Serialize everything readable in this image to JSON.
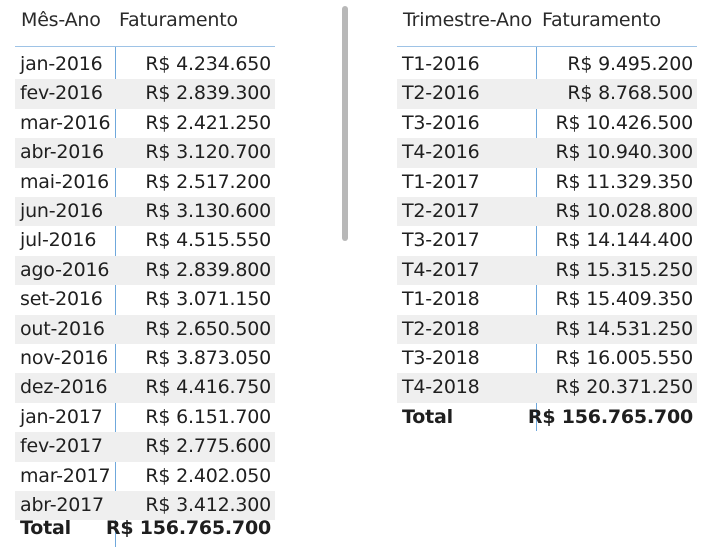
{
  "left_table": {
    "headers": [
      "Mês-Ano",
      "Faturamento"
    ],
    "rows": [
      [
        "jan-2016",
        "R$ 4.234.650"
      ],
      [
        "fev-2016",
        "R$ 2.839.300"
      ],
      [
        "mar-2016",
        "R$ 2.421.250"
      ],
      [
        "abr-2016",
        "R$ 3.120.700"
      ],
      [
        "mai-2016",
        "R$ 2.517.200"
      ],
      [
        "jun-2016",
        "R$ 3.130.600"
      ],
      [
        "jul-2016",
        "R$ 4.515.550"
      ],
      [
        "ago-2016",
        "R$ 2.839.800"
      ],
      [
        "set-2016",
        "R$ 3.071.150"
      ],
      [
        "out-2016",
        "R$ 2.650.500"
      ],
      [
        "nov-2016",
        "R$ 3.873.050"
      ],
      [
        "dez-2016",
        "R$ 4.416.750"
      ],
      [
        "jan-2017",
        "R$ 6.151.700"
      ],
      [
        "fev-2017",
        "R$ 2.775.600"
      ],
      [
        "mar-2017",
        "R$ 2.402.050"
      ],
      [
        "abr-2017",
        "R$ 3.412.300"
      ]
    ],
    "total": [
      "Total",
      "R$ 156.765.700"
    ]
  },
  "right_table": {
    "headers": [
      "Trimestre-Ano",
      "Faturamento"
    ],
    "rows": [
      [
        "T1-2016",
        "R$ 9.495.200"
      ],
      [
        "T2-2016",
        "R$ 8.768.500"
      ],
      [
        "T3-2016",
        "R$ 10.426.500"
      ],
      [
        "T4-2016",
        "R$ 10.940.300"
      ],
      [
        "T1-2017",
        "R$ 11.329.350"
      ],
      [
        "T2-2017",
        "R$ 10.028.800"
      ],
      [
        "T3-2017",
        "R$ 14.144.400"
      ],
      [
        "T4-2017",
        "R$ 15.315.250"
      ],
      [
        "T1-2018",
        "R$ 15.409.350"
      ],
      [
        "T2-2018",
        "R$ 14.531.250"
      ],
      [
        "T3-2018",
        "R$ 16.005.550"
      ],
      [
        "T4-2018",
        "R$ 20.371.250"
      ]
    ],
    "total": [
      "Total",
      "R$ 156.765.700"
    ]
  },
  "colors": {
    "grid_line": "#6fa8dc",
    "header_border": "#9ec3e6",
    "alt_row": "#efefef",
    "scrollbar": "#b8b8b8"
  }
}
